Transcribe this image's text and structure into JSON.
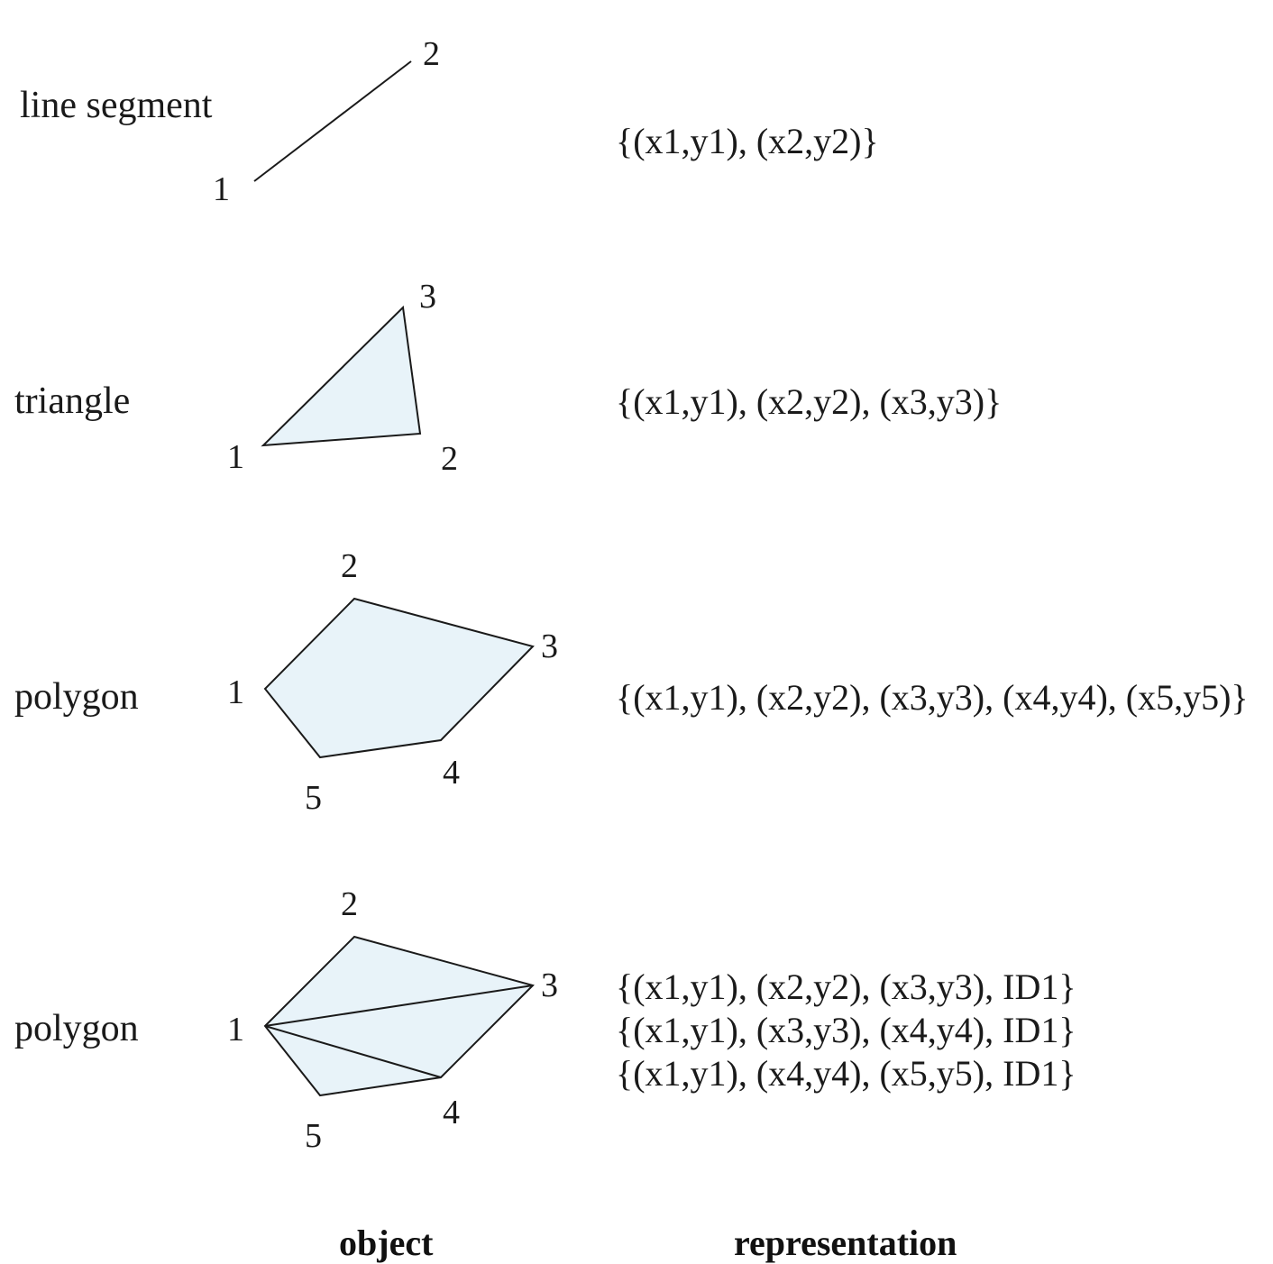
{
  "colors": {
    "shape_fill": "#e8f3f9",
    "stroke": "#1a1a1a",
    "text": "#1a1a1a"
  },
  "rows": [
    {
      "object_label": "line segment",
      "vertex_labels": [
        "1",
        "2"
      ],
      "representation": [
        "{(x1,y1), (x2,y2)}"
      ]
    },
    {
      "object_label": "triangle",
      "vertex_labels": [
        "1",
        "2",
        "3"
      ],
      "representation": [
        "{(x1,y1), (x2,y2), (x3,y3)}"
      ]
    },
    {
      "object_label": "polygon",
      "vertex_labels": [
        "1",
        "2",
        "3",
        "4",
        "5"
      ],
      "representation": [
        "{(x1,y1), (x2,y2), (x3,y3), (x4,y4), (x5,y5)}"
      ]
    },
    {
      "object_label": "polygon",
      "vertex_labels": [
        "1",
        "2",
        "3",
        "4",
        "5"
      ],
      "representation": [
        "{(x1,y1), (x2,y2), (x3,y3), ID1}",
        "{(x1,y1), (x3,y3), (x4,y4), ID1}",
        "{(x1,y1), (x4,y4), (x5,y5), ID1}"
      ]
    }
  ],
  "footer": {
    "object": "object",
    "representation": "representation"
  }
}
